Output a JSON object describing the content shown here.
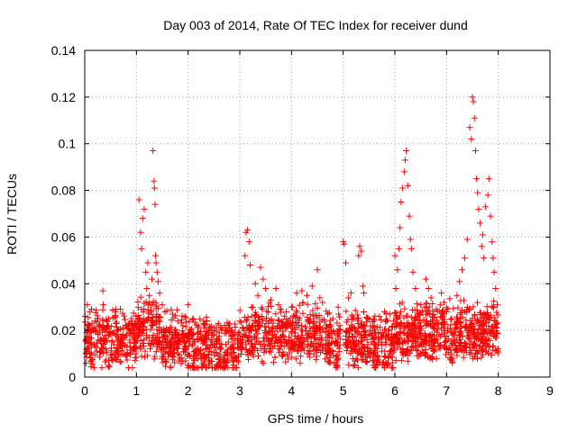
{
  "chart_data": {
    "type": "scatter",
    "title": "Day 003 of 2014, Rate Of TEC Index for receiver dund",
    "xlabel": "GPS time / hours",
    "ylabel": "ROTI / TECUs",
    "xlim": [
      0,
      9
    ],
    "ylim": [
      0,
      0.14
    ],
    "x_ticks": [
      "0",
      "1",
      "2",
      "3",
      "4",
      "5",
      "6",
      "7",
      "8",
      "9"
    ],
    "y_ticks": [
      "0",
      "0.02",
      "0.04",
      "0.06",
      "0.08",
      "0.1",
      "0.12",
      "0.14"
    ],
    "grid": true,
    "marker": "+",
    "color": "#ff0000",
    "series": [
      {
        "name": "ROTI",
        "points": [
          [
            0.05,
            0.031
          ],
          [
            0.1,
            0.028
          ],
          [
            0.2,
            0.024
          ],
          [
            0.35,
            0.037
          ],
          [
            0.45,
            0.022
          ],
          [
            0.6,
            0.029
          ],
          [
            0.8,
            0.018
          ],
          [
            0.9,
            0.024
          ],
          [
            1.05,
            0.076
          ],
          [
            1.08,
            0.062
          ],
          [
            1.1,
            0.055
          ],
          [
            1.12,
            0.068
          ],
          [
            1.15,
            0.072
          ],
          [
            1.18,
            0.045
          ],
          [
            1.2,
            0.038
          ],
          [
            1.22,
            0.049
          ],
          [
            1.25,
            0.035
          ],
          [
            1.28,
            0.028
          ],
          [
            1.3,
            0.042
          ],
          [
            1.32,
            0.097
          ],
          [
            1.34,
            0.084
          ],
          [
            1.35,
            0.081
          ],
          [
            1.36,
            0.074
          ],
          [
            1.37,
            0.052
          ],
          [
            1.38,
            0.049
          ],
          [
            1.4,
            0.045
          ],
          [
            1.42,
            0.041
          ],
          [
            1.45,
            0.036
          ],
          [
            1.5,
            0.031
          ],
          [
            1.55,
            0.028
          ],
          [
            1.7,
            0.027
          ],
          [
            1.8,
            0.024
          ],
          [
            1.9,
            0.022
          ],
          [
            2.0,
            0.031
          ],
          [
            2.1,
            0.025
          ],
          [
            2.2,
            0.022
          ],
          [
            2.4,
            0.018
          ],
          [
            2.5,
            0.02
          ],
          [
            2.6,
            0.019
          ],
          [
            2.8,
            0.021
          ],
          [
            2.9,
            0.019
          ],
          [
            3.0,
            0.024
          ],
          [
            3.1,
            0.052
          ],
          [
            3.12,
            0.062
          ],
          [
            3.15,
            0.063
          ],
          [
            3.18,
            0.058
          ],
          [
            3.2,
            0.048
          ],
          [
            3.25,
            0.03
          ],
          [
            3.3,
            0.04
          ],
          [
            3.35,
            0.035
          ],
          [
            3.4,
            0.047
          ],
          [
            3.45,
            0.042
          ],
          [
            3.5,
            0.038
          ],
          [
            3.6,
            0.033
          ],
          [
            3.7,
            0.038
          ],
          [
            3.75,
            0.031
          ],
          [
            3.8,
            0.029
          ],
          [
            3.9,
            0.028
          ],
          [
            4.0,
            0.03
          ],
          [
            4.1,
            0.036
          ],
          [
            4.2,
            0.037
          ],
          [
            4.3,
            0.035
          ],
          [
            4.4,
            0.039
          ],
          [
            4.5,
            0.046
          ],
          [
            4.55,
            0.034
          ],
          [
            4.6,
            0.032
          ],
          [
            4.7,
            0.027
          ],
          [
            4.8,
            0.025
          ],
          [
            4.9,
            0.03
          ],
          [
            5.0,
            0.058
          ],
          [
            5.02,
            0.057
          ],
          [
            5.05,
            0.049
          ],
          [
            5.1,
            0.034
          ],
          [
            5.15,
            0.036
          ],
          [
            5.2,
            0.025
          ],
          [
            5.3,
            0.052
          ],
          [
            5.32,
            0.056
          ],
          [
            5.35,
            0.054
          ],
          [
            5.38,
            0.039
          ],
          [
            5.4,
            0.036
          ],
          [
            5.6,
            0.022
          ],
          [
            5.7,
            0.026
          ],
          [
            5.8,
            0.028
          ],
          [
            5.9,
            0.027
          ],
          [
            6.0,
            0.052
          ],
          [
            6.02,
            0.038
          ],
          [
            6.05,
            0.046
          ],
          [
            6.08,
            0.055
          ],
          [
            6.1,
            0.064
          ],
          [
            6.12,
            0.075
          ],
          [
            6.15,
            0.081
          ],
          [
            6.18,
            0.088
          ],
          [
            6.2,
            0.093
          ],
          [
            6.22,
            0.097
          ],
          [
            6.25,
            0.082
          ],
          [
            6.28,
            0.069
          ],
          [
            6.3,
            0.059
          ],
          [
            6.32,
            0.055
          ],
          [
            6.35,
            0.045
          ],
          [
            6.4,
            0.038
          ],
          [
            6.5,
            0.031
          ],
          [
            6.6,
            0.042
          ],
          [
            6.65,
            0.038
          ],
          [
            6.7,
            0.034
          ],
          [
            6.8,
            0.029
          ],
          [
            6.9,
            0.036
          ],
          [
            6.95,
            0.032
          ],
          [
            7.0,
            0.028
          ],
          [
            7.1,
            0.025
          ],
          [
            7.2,
            0.035
          ],
          [
            7.25,
            0.041
          ],
          [
            7.3,
            0.046
          ],
          [
            7.35,
            0.051
          ],
          [
            7.4,
            0.059
          ],
          [
            7.45,
            0.107
          ],
          [
            7.48,
            0.102
          ],
          [
            7.5,
            0.12
          ],
          [
            7.52,
            0.118
          ],
          [
            7.54,
            0.111
          ],
          [
            7.56,
            0.097
          ],
          [
            7.58,
            0.085
          ],
          [
            7.6,
            0.079
          ],
          [
            7.62,
            0.072
          ],
          [
            7.65,
            0.066
          ],
          [
            7.68,
            0.056
          ],
          [
            7.7,
            0.061
          ],
          [
            7.72,
            0.051
          ],
          [
            7.75,
            0.073
          ],
          [
            7.8,
            0.078
          ],
          [
            7.82,
            0.085
          ],
          [
            7.85,
            0.069
          ],
          [
            7.88,
            0.058
          ],
          [
            7.9,
            0.051
          ],
          [
            7.92,
            0.045
          ],
          [
            7.95,
            0.038
          ],
          [
            7.98,
            0.031
          ]
        ]
      }
    ]
  }
}
